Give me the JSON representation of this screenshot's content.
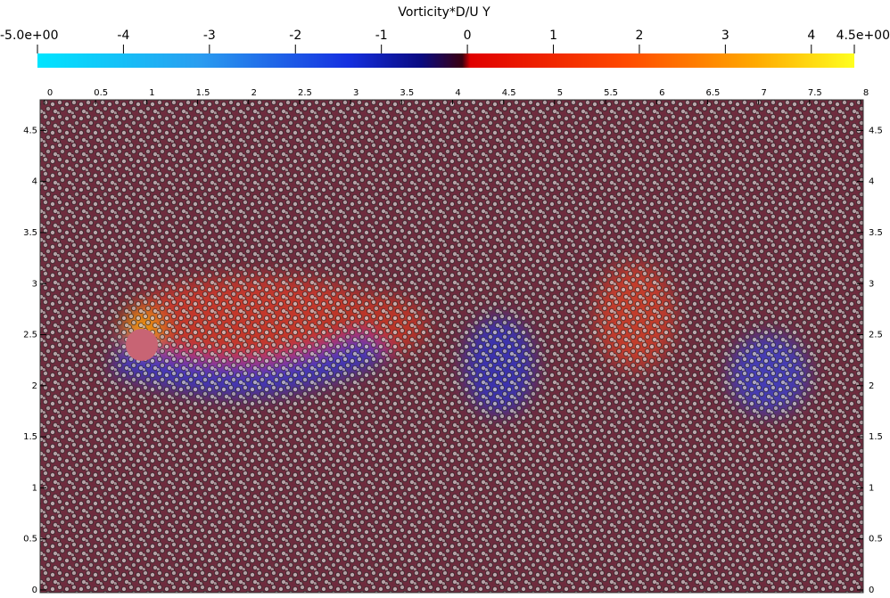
{
  "chart_data": {
    "type": "vorticity-field",
    "title": "Vorticity*D/U Y",
    "colorbar": {
      "lim": [
        -5,
        4.5
      ],
      "ticks": [
        {
          "value": -5,
          "label": "-5.0e+00"
        },
        -4,
        -3,
        -2,
        -1,
        0,
        1,
        2,
        3,
        4,
        {
          "value": 4.5,
          "label": "4.5e+00"
        }
      ]
    },
    "xlim": [
      0,
      8
    ],
    "xticks": [
      0,
      0.5,
      1,
      1.5,
      2,
      2.5,
      3,
      3.5,
      4,
      4.5,
      5,
      5.5,
      6,
      6.5,
      7,
      7.5,
      8
    ],
    "ylim": [
      0,
      4.8
    ],
    "yticks": [
      0,
      0.5,
      1,
      1.5,
      2,
      2.5,
      3,
      3.5,
      4,
      4.5
    ]
  }
}
